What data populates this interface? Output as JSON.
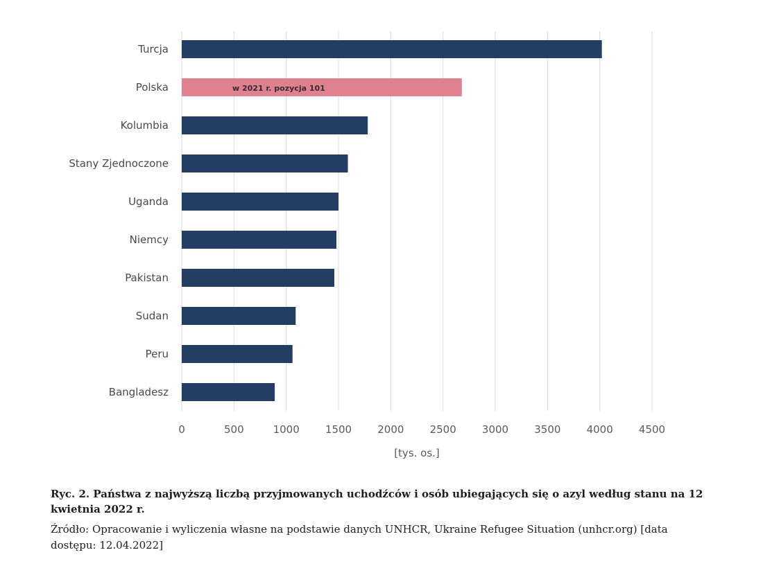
{
  "chart_data": {
    "type": "bar",
    "orientation": "horizontal",
    "categories": [
      "Turcja",
      "Polska",
      "Kolumbia",
      "Stany Zjednoczone",
      "Uganda",
      "Niemcy",
      "Pakistan",
      "Sudan",
      "Peru",
      "Bangladesz"
    ],
    "values": [
      4020,
      2680,
      1780,
      1590,
      1500,
      1480,
      1460,
      1090,
      1060,
      890
    ],
    "xlabel": "[tys. os.]",
    "xlim": [
      0,
      4500
    ],
    "xticks": [
      0,
      500,
      1000,
      1500,
      2000,
      2500,
      3000,
      3500,
      4000,
      4500
    ],
    "grid": "vertical",
    "annotation": {
      "category": "Polska",
      "text": "w 2021 r. pozycja 101"
    },
    "colors": {
      "bar": "#243e63",
      "highlight": "#de8290",
      "grid": "#d9d9d9"
    },
    "highlight_category": "Polska"
  },
  "caption": {
    "title": "Ryc. 2. Państwa z najwyższą liczbą przyjmowanych uchodźców i osób ubiegających się o azyl według stanu na 12 kwietnia 2022 r.",
    "source": "Źródło: Opracowanie i wyliczenia własne na podstawie danych UNHCR, Ukraine Refugee Situation (unhcr.org) [data dostępu: 12.04.2022]"
  }
}
